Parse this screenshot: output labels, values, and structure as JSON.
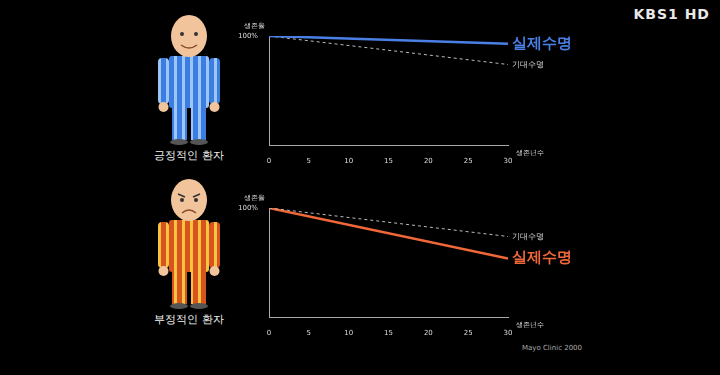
{
  "logo": "KBS1 HD",
  "source": "Mayo Clinic 2000",
  "chart_data": [
    {
      "type": "line",
      "title": "긍정적인 환자",
      "y_label": "생존율",
      "x_label": "생존년수",
      "x": [
        0,
        30
      ],
      "xlim": [
        0,
        30
      ],
      "xticks": [
        0,
        5,
        10,
        15,
        20,
        25,
        30
      ],
      "ylim": [
        0,
        100
      ],
      "yticks": [
        {
          "value": 100,
          "label": "100%"
        }
      ],
      "grid": false,
      "series": [
        {
          "name": "실제수명",
          "color": "#4a7fe6",
          "line_style": "solid",
          "values": [
            100,
            93
          ]
        },
        {
          "name": "기대수명",
          "color": "#bbbbbb",
          "line_style": "dashed",
          "values": [
            100,
            74
          ]
        }
      ]
    },
    {
      "type": "line",
      "title": "부정적인 환자",
      "y_label": "생존율",
      "x_label": "생존년수",
      "x": [
        0,
        30
      ],
      "xlim": [
        0,
        30
      ],
      "xticks": [
        0,
        5,
        10,
        15,
        20,
        25,
        30
      ],
      "ylim": [
        0,
        100
      ],
      "yticks": [
        {
          "value": 100,
          "label": "100%"
        }
      ],
      "grid": false,
      "series": [
        {
          "name": "기대수명",
          "color": "#bbbbbb",
          "line_style": "dashed",
          "values": [
            100,
            74
          ]
        },
        {
          "name": "실제수명",
          "color": "#f0683a",
          "line_style": "solid",
          "values": [
            100,
            54
          ]
        }
      ]
    }
  ]
}
